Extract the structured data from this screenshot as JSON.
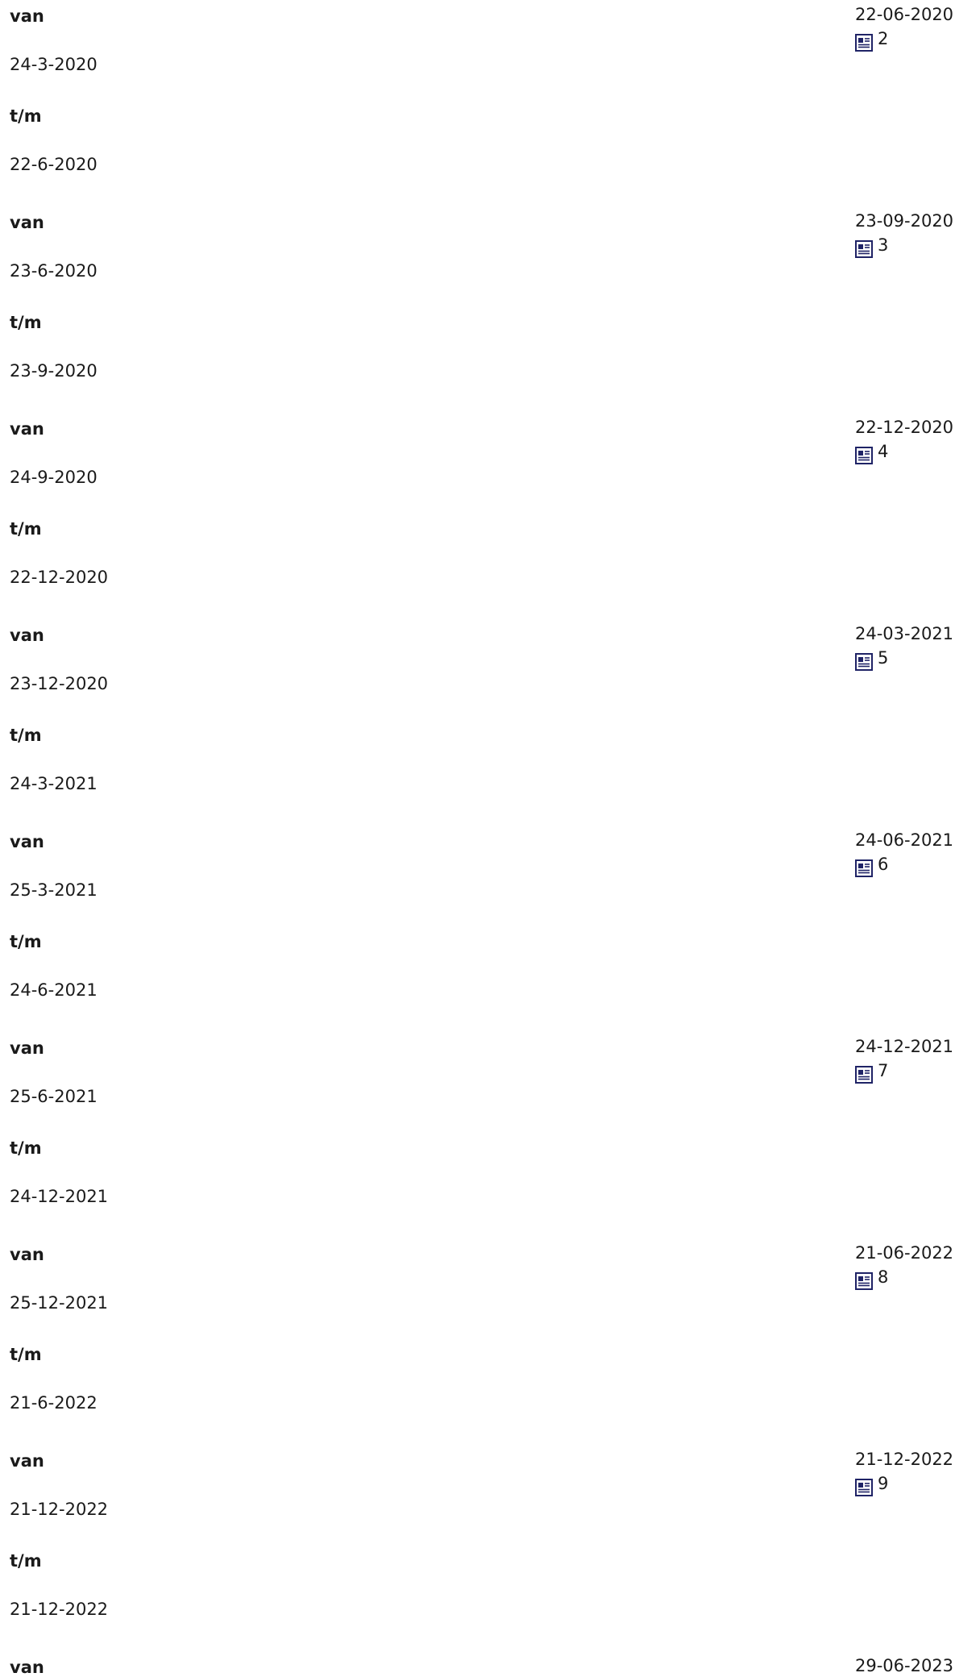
{
  "labels": {
    "from": "van",
    "to": "t/m"
  },
  "icons": {
    "document": "document-icon"
  },
  "colors": {
    "text": "#1a1a1a",
    "icon": "#1f2366"
  },
  "periods": [
    {
      "from": "24-3-2020",
      "to": "22-6-2020",
      "date": "22-06-2020",
      "number": "2"
    },
    {
      "from": "23-6-2020",
      "to": "23-9-2020",
      "date": "23-09-2020",
      "number": "3"
    },
    {
      "from": "24-9-2020",
      "to": "22-12-2020",
      "date": "22-12-2020",
      "number": "4"
    },
    {
      "from": "23-12-2020",
      "to": "24-3-2021",
      "date": "24-03-2021",
      "number": "5"
    },
    {
      "from": "25-3-2021",
      "to": "24-6-2021",
      "date": "24-06-2021",
      "number": "6"
    },
    {
      "from": "25-6-2021",
      "to": "24-12-2021",
      "date": "24-12-2021",
      "number": "7"
    },
    {
      "from": "25-12-2021",
      "to": "21-6-2022",
      "date": "21-06-2022",
      "number": "8"
    },
    {
      "from": "21-12-2022",
      "to": "21-12-2022",
      "date": "21-12-2022",
      "number": "9"
    }
  ],
  "partial_period": {
    "date": "29-06-2023"
  }
}
